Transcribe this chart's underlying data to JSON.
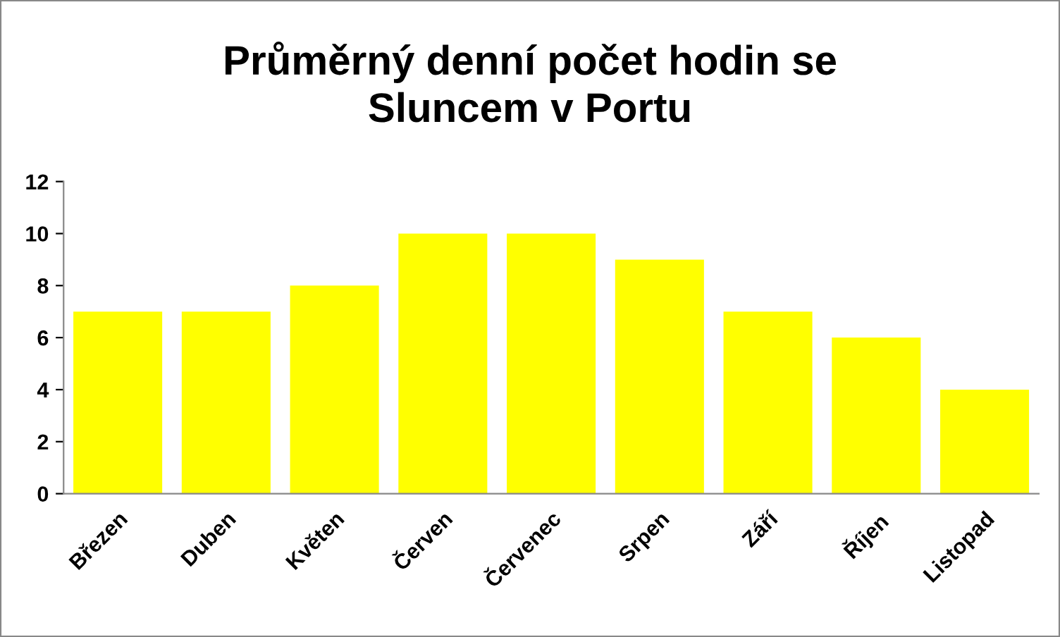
{
  "chart_data": {
    "type": "bar",
    "title": "Průměrný denní počet hodin se\nSluncem v Portu",
    "categories": [
      "Březen",
      "Duben",
      "Květen",
      "Červen",
      "Červenec",
      "Srpen",
      "Září",
      "Říjen",
      "Listopad"
    ],
    "values": [
      7,
      7,
      8,
      10,
      10,
      9,
      7,
      6,
      4
    ],
    "color": "#ffff00",
    "ylim": [
      0,
      12
    ],
    "yticks": [
      0,
      2,
      4,
      6,
      8,
      10,
      12
    ],
    "grid": false,
    "legend": false
  }
}
